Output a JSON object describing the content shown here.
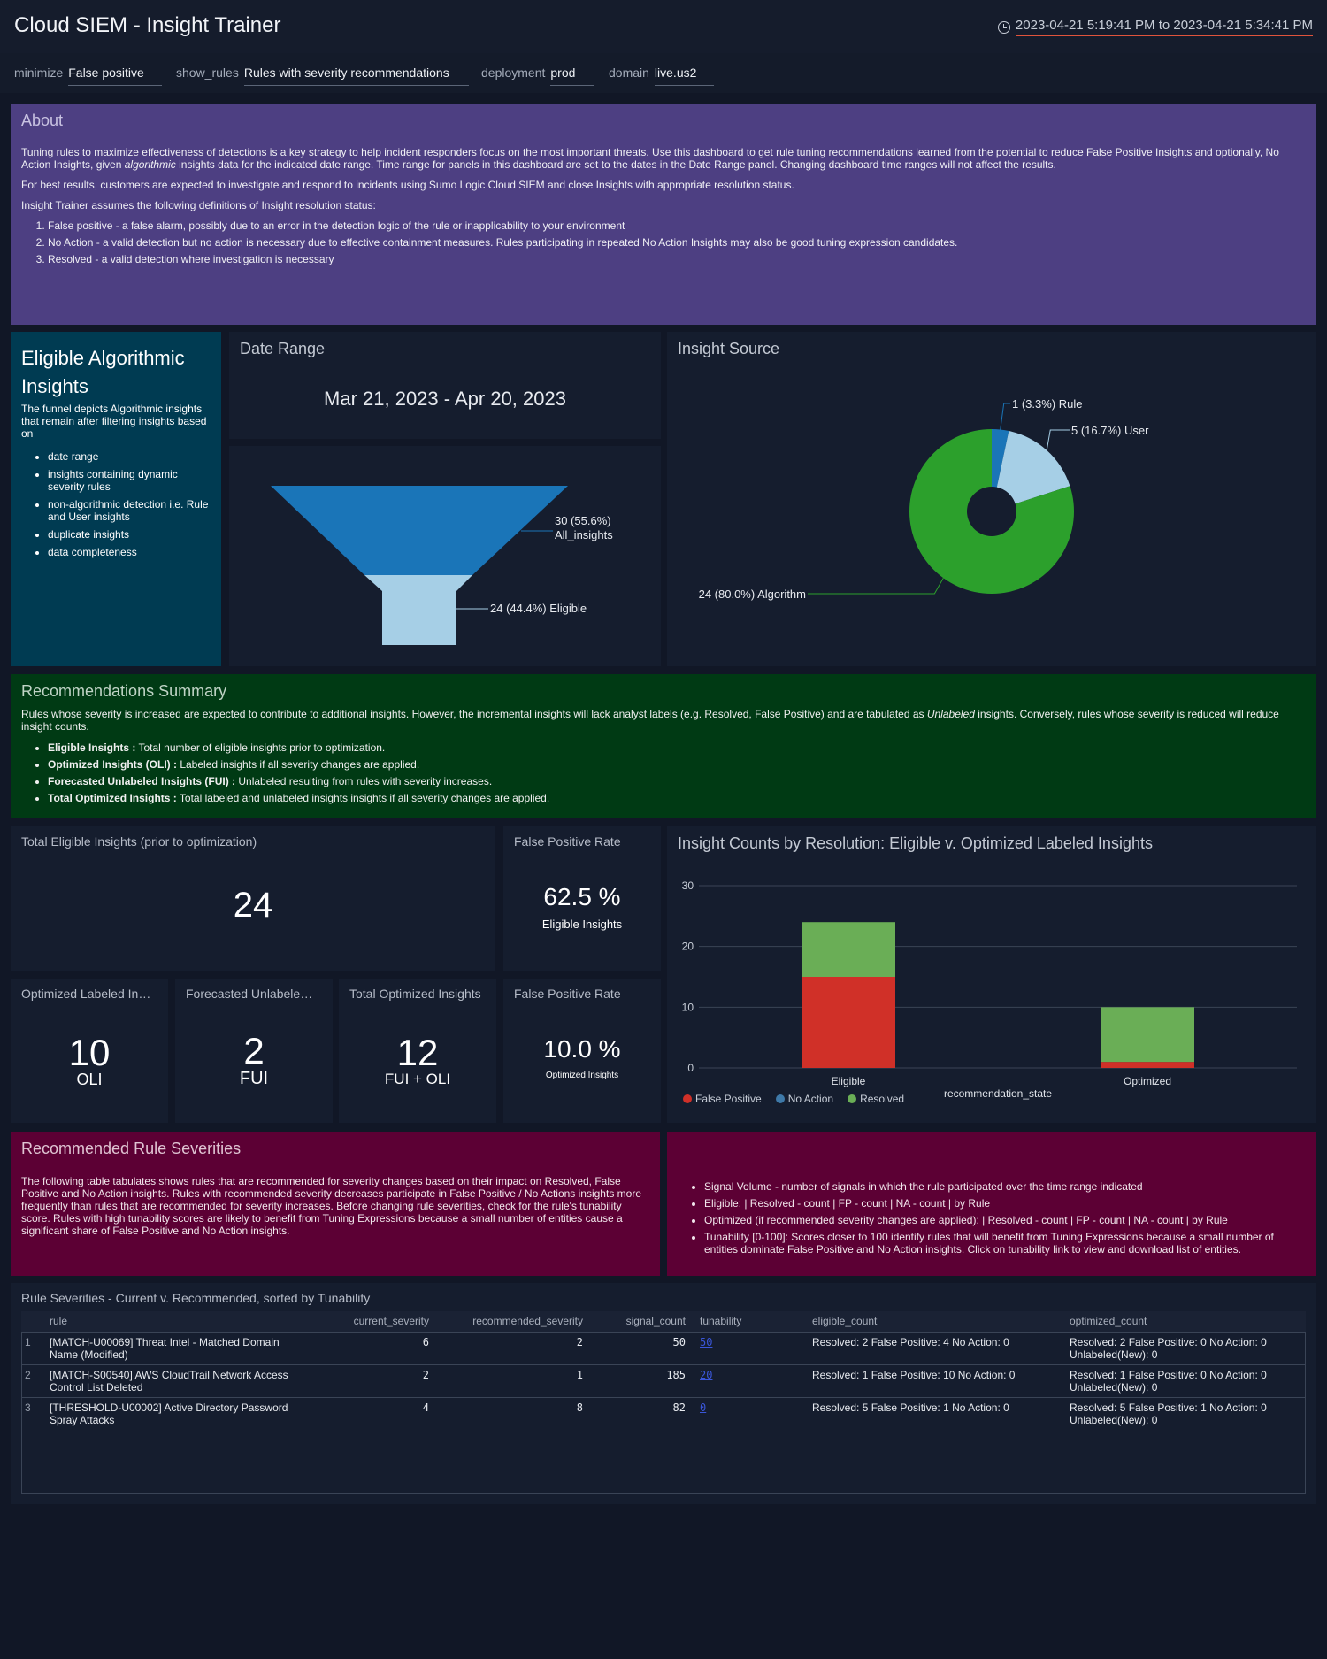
{
  "header": {
    "title": "Cloud SIEM - Insight Trainer",
    "time_range": "2023-04-21 5:19:41 PM to 2023-04-21 5:34:41 PM"
  },
  "filters": [
    {
      "label": "minimize",
      "value": "False positive"
    },
    {
      "label": "show_rules",
      "value": "Rules with severity recommendations"
    },
    {
      "label": "deployment",
      "value": "prod"
    },
    {
      "label": "domain",
      "value": "live.us2"
    }
  ],
  "about": {
    "title": "About",
    "p1a": "Tuning rules to maximize effectiveness of detections is a key strategy to help incident responders focus on the most important threats. Use this dashboard to get rule tuning recommendations learned from the potential to reduce False Positive Insights and optionally, No Action Insights, given ",
    "p1em": "algorithmic",
    "p1b": " insights data for the indicated date range. Time range for panels in this dashboard are set to the dates in the Date Range panel. Changing dashboard time ranges will not affect the results.",
    "p2": "For best results, customers are expected to investigate and respond to incidents using Sumo Logic Cloud SIEM and close Insights with appropriate resolution status.",
    "p3": "Insight Trainer assumes the following definitions of Insight resolution status:",
    "items": [
      "False positive - a false alarm, possibly due to an error in the detection logic of the rule or inapplicability to your environment",
      "No Action - a valid detection but no action is necessary due to effective containment measures. Rules participating in repeated No Action Insights may also be good tuning expression candidates.",
      "Resolved - a valid detection where investigation is necessary"
    ]
  },
  "eligible": {
    "title": "Eligible Algorithmic Insights",
    "desc": "The funnel depicts Algorithmic insights that remain after filtering insights based on",
    "items": [
      "date range",
      "insights containing dynamic severity rules",
      "non-algorithmic detection i.e. Rule and User insights",
      "duplicate insights",
      "data completeness"
    ]
  },
  "date_range": {
    "title": "Date Range",
    "value": "Mar 21, 2023 - Apr 20, 2023"
  },
  "funnel": {
    "stages": [
      {
        "label": "30 (55.6%)",
        "label2": "All_insights",
        "value": 30,
        "color": "#1a75b8"
      },
      {
        "label": "24 (44.4%) Eligible",
        "value": 24,
        "color": "#a6cfe6"
      }
    ]
  },
  "insight_source": {
    "title": "Insight Source",
    "slices": [
      {
        "label": "1 (3.3%) Rule",
        "value": 1,
        "color": "#1a75b8"
      },
      {
        "label": "5 (16.7%) User",
        "value": 5,
        "color": "#a6cfe6"
      },
      {
        "label": "24 (80.0%) Algorithm",
        "value": 24,
        "color": "#2ca02c"
      }
    ]
  },
  "recsum": {
    "title": "Recommendations Summary",
    "p1a": "Rules whose severity is increased are expected to contribute to additional insights. However, the incremental insights will lack analyst labels (e.g. Resolved, False Positive) and are tabulated as ",
    "p1em": "Unlabeled",
    "p1b": " insights. Conversely, rules whose severity is reduced will reduce insight counts.",
    "items": [
      {
        "b": "Eligible Insights :",
        "t": " Total number of eligible insights prior to optimization."
      },
      {
        "b": "Optimized Insights (OLI) :",
        "t": " Labeled insights if all severity changes are applied."
      },
      {
        "b": "Forecasted Unlabeled Insights (FUI) :",
        "t": " Unlabeled resulting from rules with severity increases."
      },
      {
        "b": "Total Optimized Insights :",
        "t": " Total labeled and unlabeled insights insights if all severity changes are applied."
      }
    ]
  },
  "stats": {
    "total_eligible": {
      "label": "Total Eligible Insights (prior to optimization)",
      "value": "24"
    },
    "fpr1": {
      "label": "False Positive Rate",
      "value": "62.5 %",
      "sub": "Eligible Insights"
    },
    "oli": {
      "label": "Optimized Labeled Insights",
      "value": "10",
      "sub": "OLI"
    },
    "fui": {
      "label": "Forecasted Unlabeled Insights",
      "value": "2",
      "sub": "FUI"
    },
    "total_opt": {
      "label": "Total Optimized Insights",
      "value": "12",
      "sub": "FUI + OLI"
    },
    "fpr2": {
      "label": "False Positive Rate",
      "value": "10.0 %",
      "sub": "Optimized Insights"
    }
  },
  "chart_data": {
    "type": "bar",
    "title": "Insight Counts by Resolution: Eligible v. Optimized Labeled Insights",
    "xlabel": "recommendation_state",
    "ylabel": "",
    "categories": [
      "Eligible",
      "Optimized"
    ],
    "stacked": true,
    "ylim": [
      0,
      30
    ],
    "yticks": [
      0,
      10,
      20,
      30
    ],
    "grid": true,
    "legend_position": "bottom-left",
    "series": [
      {
        "name": "False Positive",
        "values": [
          15,
          1
        ],
        "color": "#d03028"
      },
      {
        "name": "No Action",
        "values": [
          0,
          0
        ],
        "color": "#3e79a8"
      },
      {
        "name": "Resolved",
        "values": [
          9,
          9
        ],
        "color": "#6aae56"
      }
    ]
  },
  "rrs": {
    "title": "Recommended Rule Severities",
    "body": "The following table tabulates shows rules that are recommended for severity changes based on their impact on Resolved, False Positive and No Action insights. Rules with recommended severity decreases participate in False Positive / No Actions insights more frequently than rules that are recommended for severity increases. Before changing rule severities, check for the rule's tunability score. Rules with high tunability scores are likely to benefit from Tuning Expressions because a small number of entities cause a significant share of False Positive and No Action insights.",
    "items": [
      "Signal Volume - number of signals in which the rule participated over the time range indicated",
      "Eligible: | Resolved - count | FP - count | NA - count | by Rule",
      "Optimized (if recommended severity changes are applied): | Resolved - count | FP - count | NA - count | by Rule",
      "Tunability [0-100]: Scores closer to 100 identify rules that will benefit from Tuning Expressions because a small number of entities dominate False Positive and No Action insights. Click on tunability link to view and download list of entities."
    ]
  },
  "table": {
    "title": "Rule Severities - Current v. Recommended, sorted by Tunability",
    "columns": [
      "rule",
      "current_severity",
      "recommended_severity",
      "signal_count",
      "tunability",
      "eligible_count",
      "optimized_count"
    ],
    "rows": [
      {
        "idx": "1",
        "rule": "[MATCH-U00069] Threat Intel - Matched Domain Name (Modified)",
        "current": "6",
        "recommended": "2",
        "signal": "50",
        "tun": "50",
        "eligible": "Resolved: 2 False Positive: 4 No Action: 0",
        "optimized": "Resolved: 2 False Positive: 0 No Action: 0 Unlabeled(New): 0"
      },
      {
        "idx": "2",
        "rule": "[MATCH-S00540] AWS CloudTrail Network Access Control List Deleted",
        "current": "2",
        "recommended": "1",
        "signal": "185",
        "tun": "20",
        "eligible": "Resolved: 1 False Positive: 10 No Action: 0",
        "optimized": "Resolved: 1 False Positive: 0 No Action: 0 Unlabeled(New): 0"
      },
      {
        "idx": "3",
        "rule": "[THRESHOLD-U00002] Active Directory Password Spray Attacks",
        "current": "4",
        "recommended": "8",
        "signal": "82",
        "tun": "0",
        "eligible": "Resolved: 5 False Positive: 1 No Action: 0",
        "optimized": "Resolved: 5 False Positive: 1 No Action: 0 Unlabeled(New): 0"
      }
    ]
  }
}
